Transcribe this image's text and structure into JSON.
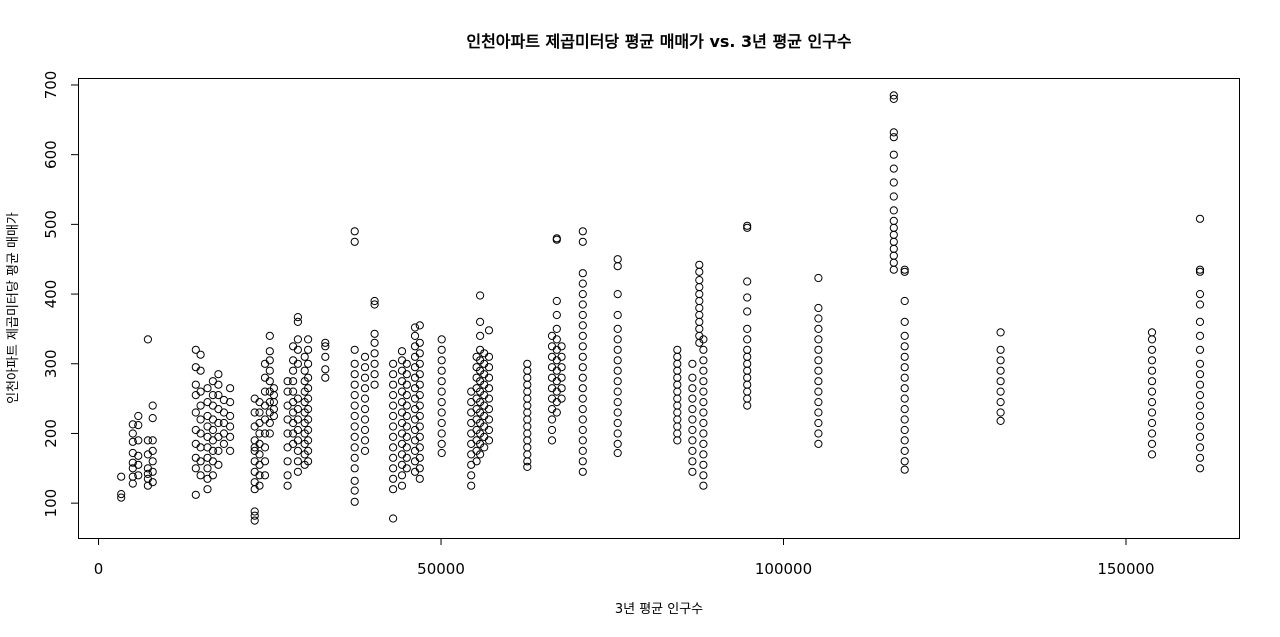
{
  "chart_data": {
    "type": "scatter",
    "title": "인천아파트 제곱미터당 평균 매매가 vs. 3년 평균 인구수",
    "xlabel": "3년 평균 인구수",
    "ylabel": "인천아파트 제곱미터당 평균 매매가",
    "xlim": [
      -3000,
      166500
    ],
    "ylim": [
      50,
      710
    ],
    "xticks": [
      0,
      50000,
      100000,
      150000
    ],
    "yticks": [
      100,
      200,
      300,
      400,
      500,
      600,
      700
    ],
    "groups": [
      {
        "x": 3300,
        "y": [
          108,
          113,
          138
        ]
      },
      {
        "x": 5000,
        "y": [
          128,
          138,
          150,
          158,
          172,
          188,
          200,
          213
        ]
      },
      {
        "x": 5800,
        "y": [
          140,
          155,
          168,
          190,
          212,
          225
        ]
      },
      {
        "x": 7200,
        "y": [
          125,
          135,
          142,
          150,
          170,
          190,
          335
        ]
      },
      {
        "x": 7900,
        "y": [
          130,
          145,
          160,
          175,
          190,
          222,
          240
        ]
      },
      {
        "x": 14200,
        "y": [
          112,
          150,
          165,
          185,
          205,
          230,
          255,
          270,
          295,
          320
        ]
      },
      {
        "x": 14900,
        "y": [
          140,
          160,
          180,
          200,
          220,
          240,
          260,
          290,
          313
        ]
      },
      {
        "x": 15900,
        "y": [
          120,
          135,
          150,
          165,
          180,
          195,
          210,
          225,
          245,
          265
        ]
      },
      {
        "x": 16700,
        "y": [
          140,
          160,
          175,
          190,
          205,
          220,
          240,
          255,
          275
        ]
      },
      {
        "x": 17500,
        "y": [
          155,
          175,
          195,
          215,
          235,
          255,
          270,
          285
        ]
      },
      {
        "x": 18300,
        "y": [
          185,
          200,
          215,
          230,
          248
        ]
      },
      {
        "x": 19200,
        "y": [
          175,
          195,
          210,
          225,
          245,
          265
        ]
      },
      {
        "x": 22800,
        "y": [
          75,
          82,
          88,
          120,
          130,
          145,
          160,
          175,
          180,
          190,
          210,
          230,
          250
        ]
      },
      {
        "x": 23500,
        "y": [
          125,
          140,
          155,
          170,
          185,
          200,
          215,
          230,
          245
        ]
      },
      {
        "x": 24300,
        "y": [
          140,
          160,
          180,
          200,
          220,
          240,
          260,
          280,
          300
        ]
      },
      {
        "x": 25000,
        "y": [
          200,
          215,
          230,
          245,
          260,
          275,
          290,
          305,
          318,
          340
        ]
      },
      {
        "x": 25600,
        "y": [
          225,
          235,
          245,
          255,
          265
        ]
      },
      {
        "x": 27600,
        "y": [
          125,
          140,
          160,
          180,
          200,
          220,
          240,
          260,
          275
        ]
      },
      {
        "x": 28400,
        "y": [
          185,
          200,
          215,
          230,
          245,
          260,
          275,
          290,
          305,
          325
        ]
      },
      {
        "x": 29100,
        "y": [
          145,
          160,
          175,
          190,
          205,
          220,
          235,
          250,
          300,
          320,
          335,
          360,
          367
        ]
      },
      {
        "x": 30100,
        "y": [
          155,
          170,
          185,
          200,
          215,
          230,
          245,
          260,
          275,
          290,
          310
        ]
      },
      {
        "x": 30600,
        "y": [
          160,
          175,
          190,
          205,
          220,
          235,
          250,
          265,
          280,
          300,
          320,
          335
        ]
      },
      {
        "x": 33100,
        "y": [
          280,
          292,
          310,
          325,
          330
        ]
      },
      {
        "x": 37400,
        "y": [
          102,
          118,
          132,
          150,
          165,
          180,
          195,
          210,
          225,
          240,
          255,
          270,
          285,
          300,
          320,
          475,
          490
        ]
      },
      {
        "x": 38900,
        "y": [
          175,
          190,
          205,
          220,
          235,
          250,
          265,
          280,
          295,
          310
        ]
      },
      {
        "x": 40300,
        "y": [
          270,
          285,
          300,
          315,
          330,
          343,
          385,
          390
        ]
      },
      {
        "x": 43000,
        "y": [
          78,
          120,
          135,
          150,
          165,
          180,
          195,
          210,
          225,
          240,
          255,
          270,
          285,
          300
        ]
      },
      {
        "x": 44300,
        "y": [
          125,
          140,
          155,
          170,
          185,
          200,
          215,
          230,
          245,
          260,
          275,
          290,
          305,
          318
        ]
      },
      {
        "x": 45000,
        "y": [
          150,
          165,
          180,
          195,
          210,
          225,
          240,
          255,
          270,
          285,
          300
        ]
      },
      {
        "x": 46200,
        "y": [
          145,
          160,
          175,
          190,
          205,
          220,
          235,
          250,
          265,
          280,
          295,
          310,
          325,
          340,
          352
        ]
      },
      {
        "x": 46900,
        "y": [
          135,
          150,
          165,
          180,
          195,
          210,
          225,
          240,
          255,
          270,
          285,
          300,
          315,
          330,
          355
        ]
      },
      {
        "x": 50100,
        "y": [
          172,
          185,
          200,
          215,
          230,
          245,
          260,
          275,
          290,
          305,
          320,
          335
        ]
      },
      {
        "x": 54400,
        "y": [
          125,
          140,
          155,
          170,
          185,
          200,
          215,
          230,
          245,
          260
        ]
      },
      {
        "x": 55200,
        "y": [
          160,
          175,
          190,
          205,
          220,
          235,
          250,
          265,
          280,
          295,
          310
        ]
      },
      {
        "x": 55700,
        "y": [
          170,
          185,
          200,
          215,
          230,
          245,
          260,
          275,
          290,
          305,
          320,
          340,
          360,
          398
        ]
      },
      {
        "x": 56300,
        "y": [
          180,
          195,
          210,
          225,
          240,
          255,
          270,
          285,
          300,
          315
        ]
      },
      {
        "x": 57000,
        "y": [
          190,
          205,
          220,
          235,
          250,
          265,
          280,
          295,
          310,
          348
        ]
      },
      {
        "x": 62600,
        "y": [
          152,
          160,
          170,
          180,
          190,
          200,
          210,
          220,
          230,
          240,
          250,
          260,
          270,
          280,
          290,
          300
        ]
      },
      {
        "x": 66200,
        "y": [
          190,
          205,
          220,
          235,
          250,
          265,
          280,
          295,
          310,
          325,
          340
        ]
      },
      {
        "x": 66900,
        "y": [
          230,
          245,
          260,
          275,
          290,
          305,
          320,
          335,
          350,
          370,
          390,
          478,
          480
        ]
      },
      {
        "x": 67600,
        "y": [
          250,
          265,
          280,
          295,
          310,
          325
        ]
      },
      {
        "x": 70700,
        "y": [
          145,
          160,
          175,
          190,
          205,
          220,
          235,
          250,
          265,
          280,
          295,
          310,
          325,
          340,
          355,
          370,
          385,
          400,
          415,
          430,
          475,
          490
        ]
      },
      {
        "x": 75800,
        "y": [
          172,
          185,
          200,
          215,
          230,
          245,
          260,
          275,
          290,
          305,
          320,
          335,
          350,
          370,
          400,
          440,
          450
        ]
      },
      {
        "x": 84500,
        "y": [
          190,
          200,
          210,
          220,
          230,
          240,
          250,
          260,
          270,
          280,
          290,
          300,
          310,
          320
        ]
      },
      {
        "x": 86700,
        "y": [
          145,
          160,
          175,
          190,
          205,
          220,
          235,
          250,
          265,
          280,
          300
        ]
      },
      {
        "x": 87700,
        "y": [
          330,
          340,
          350,
          360,
          370,
          380,
          390,
          400,
          410,
          420,
          432,
          442
        ]
      },
      {
        "x": 88300,
        "y": [
          125,
          140,
          155,
          170,
          185,
          200,
          215,
          230,
          245,
          260,
          275,
          290,
          305,
          320,
          335
        ]
      },
      {
        "x": 94700,
        "y": [
          240,
          250,
          260,
          270,
          280,
          290,
          300,
          310,
          320,
          335,
          350,
          375,
          395,
          418,
          495,
          498
        ]
      },
      {
        "x": 105100,
        "y": [
          185,
          200,
          215,
          230,
          245,
          260,
          275,
          290,
          305,
          320,
          335,
          350,
          365,
          380,
          423
        ]
      },
      {
        "x": 116100,
        "y": [
          435,
          445,
          455,
          465,
          475,
          485,
          495,
          505,
          520,
          540,
          560,
          580,
          600,
          625,
          632,
          680,
          685
        ]
      },
      {
        "x": 117700,
        "y": [
          148,
          160,
          175,
          190,
          205,
          220,
          235,
          250,
          265,
          280,
          295,
          310,
          325,
          340,
          360,
          390,
          432,
          435
        ]
      },
      {
        "x": 131700,
        "y": [
          218,
          230,
          245,
          260,
          275,
          290,
          305,
          320,
          345
        ]
      },
      {
        "x": 153800,
        "y": [
          170,
          185,
          200,
          215,
          230,
          245,
          260,
          275,
          290,
          305,
          320,
          335,
          345
        ]
      },
      {
        "x": 160800,
        "y": [
          150,
          165,
          180,
          195,
          210,
          225,
          240,
          255,
          270,
          285,
          300,
          320,
          340,
          360,
          385,
          400,
          432,
          435,
          508
        ]
      }
    ]
  }
}
